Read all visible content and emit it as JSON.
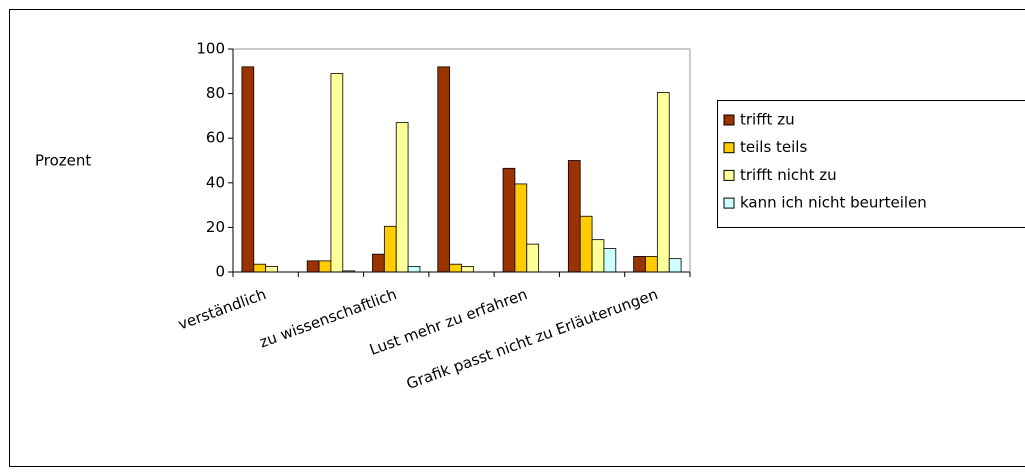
{
  "chart_data": {
    "type": "bar",
    "y_label": "Prozent",
    "categories": [
      "verständlich",
      null,
      "zu wissenschaftlich",
      null,
      "Lust mehr zu erfahren",
      null,
      "Grafik passt nicht zu Erläuterungen"
    ],
    "series": [
      {
        "name": "trifft zu",
        "color": "#993300",
        "values": [
          92,
          5,
          8,
          92,
          46.5,
          50,
          7
        ]
      },
      {
        "name": "teils teils",
        "color": "#ffcc00",
        "values": [
          3.5,
          5,
          20.5,
          3.5,
          39.5,
          25,
          7
        ]
      },
      {
        "name": "trifft nicht zu",
        "color": "#ffff99",
        "values": [
          2.5,
          89,
          67,
          2.5,
          12.5,
          14.5,
          80.5
        ]
      },
      {
        "name": "kann ich nicht beurteilen",
        "color": "#ccffff",
        "values": [
          0,
          0.5,
          2.5,
          0,
          0,
          10.5,
          6
        ]
      }
    ],
    "ylim": [
      0,
      100
    ],
    "yticks": [
      0,
      20,
      40,
      60,
      80,
      100
    ],
    "legend": "right"
  }
}
